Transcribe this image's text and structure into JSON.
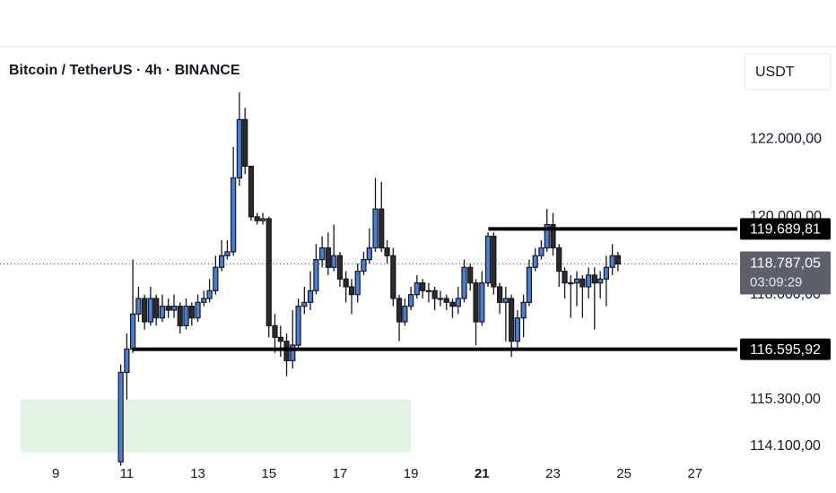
{
  "chart_data": {
    "type": "candlestick",
    "title": "Bitcoin / TetherUS · 4h · BINANCE",
    "currency_button": "USDT",
    "x": [
      10.83,
      11,
      11.17,
      11.33,
      11.5,
      11.67,
      11.83,
      12,
      12.17,
      12.33,
      12.5,
      12.67,
      12.83,
      13,
      13.17,
      13.33,
      13.5,
      13.67,
      13.83,
      14,
      14.17,
      14.33,
      14.5,
      14.67,
      14.83,
      15,
      15.17,
      15.33,
      15.5,
      15.67,
      15.83,
      16,
      16.17,
      16.33,
      16.5,
      16.67,
      16.83,
      17,
      17.17,
      17.33,
      17.5,
      17.67,
      17.83,
      18,
      18.17,
      18.33,
      18.5,
      18.67,
      18.83,
      19,
      19.17,
      19.33,
      19.5,
      19.67,
      19.83,
      20,
      20.17,
      20.33,
      20.5,
      20.67,
      20.83,
      21,
      21.17,
      21.33,
      21.5,
      21.67,
      21.83,
      22,
      22.17,
      22.33,
      22.5,
      22.67,
      22.83,
      23,
      23.17,
      23.33,
      23.5,
      23.67,
      23.83,
      24,
      24.17,
      24.33,
      24.5,
      24.67,
      24.83
    ],
    "open": [
      113700,
      116000,
      116600,
      117500,
      117900,
      117300,
      117900,
      117400,
      117700,
      117600,
      117700,
      117200,
      117700,
      117400,
      117800,
      117900,
      118100,
      118700,
      119000,
      119100,
      121000,
      122500,
      121300,
      120000,
      119900,
      119950,
      117200,
      116900,
      116800,
      116300,
      116700,
      117700,
      117800,
      118100,
      118900,
      119200,
      118700,
      119000,
      118400,
      118200,
      118000,
      118600,
      118900,
      119200,
      120200,
      119200,
      119000,
      117900,
      117300,
      117700,
      118000,
      118300,
      118100,
      118100,
      117900,
      117900,
      117800,
      117700,
      117900,
      118700,
      118300,
      117300,
      118300,
      119500,
      118200,
      117800,
      117900,
      116800,
      117400,
      117800,
      118700,
      119000,
      119200,
      119800,
      119200,
      118600,
      118300,
      118300,
      118400,
      118200,
      118500,
      118300,
      118400,
      118700,
      119000
    ],
    "high": [
      116200,
      117000,
      118900,
      118200,
      118000,
      118200,
      118000,
      118000,
      117900,
      118000,
      117800,
      117900,
      117800,
      118000,
      118100,
      118400,
      119000,
      119400,
      119400,
      121800,
      123200,
      122800,
      121300,
      120100,
      120100,
      120000,
      117500,
      117200,
      117000,
      117600,
      117900,
      118200,
      118600,
      119300,
      119500,
      119600,
      119800,
      119100,
      118600,
      118400,
      118800,
      119100,
      119700,
      121000,
      120900,
      119400,
      119200,
      118000,
      117900,
      118200,
      118500,
      118400,
      118300,
      118200,
      118100,
      118000,
      117900,
      118200,
      118900,
      118800,
      118400,
      118600,
      119600,
      119600,
      118300,
      118200,
      118000,
      117600,
      118000,
      118900,
      119200,
      119400,
      120200,
      120100,
      119300,
      118700,
      118500,
      118600,
      118500,
      118700,
      118700,
      118600,
      119000,
      119300,
      119100
    ],
    "low": [
      113600,
      115300,
      116500,
      117300,
      117100,
      117200,
      117200,
      117300,
      117400,
      117400,
      117000,
      117100,
      117200,
      117300,
      117700,
      117800,
      118000,
      118600,
      118900,
      119000,
      120800,
      121100,
      119900,
      119800,
      119800,
      116900,
      116500,
      116400,
      115900,
      116100,
      116600,
      117500,
      117600,
      118000,
      118700,
      118500,
      118600,
      118200,
      117800,
      117500,
      117800,
      118500,
      118800,
      119100,
      119100,
      118800,
      117700,
      116800,
      117200,
      117600,
      117900,
      117900,
      117800,
      117600,
      117700,
      117600,
      117400,
      117500,
      117800,
      118100,
      116700,
      117200,
      118200,
      118000,
      117500,
      116800,
      116400,
      116600,
      116900,
      117700,
      118600,
      118900,
      119100,
      119000,
      118200,
      117900,
      117400,
      117700,
      117400,
      117900,
      117100,
      117900,
      117700,
      118500,
      118600
    ],
    "close": [
      116000,
      116600,
      117500,
      117900,
      117300,
      117900,
      117400,
      117700,
      117600,
      117700,
      117200,
      117700,
      117400,
      117800,
      117900,
      118100,
      118700,
      119000,
      119100,
      121000,
      122500,
      121300,
      120000,
      119900,
      119950,
      117200,
      116900,
      116800,
      116300,
      116700,
      117700,
      117800,
      118100,
      118900,
      119200,
      118700,
      119000,
      118400,
      118200,
      118000,
      118600,
      118900,
      119200,
      120200,
      119200,
      119000,
      117900,
      117300,
      117700,
      118000,
      118300,
      118100,
      118100,
      117900,
      117900,
      117800,
      117700,
      117900,
      118700,
      118300,
      117300,
      118300,
      119500,
      118200,
      117800,
      117900,
      116800,
      117400,
      117800,
      118700,
      119000,
      119200,
      119800,
      119200,
      118600,
      118300,
      118300,
      118400,
      118200,
      118500,
      118300,
      118400,
      118700,
      119000,
      118787.05
    ],
    "up_color": "#4a7fd6",
    "down_color": "#2b2b2b",
    "wick_color": "#131722",
    "xlim": [
      7.43,
      28.19
    ],
    "ylim": [
      113820,
      123270
    ],
    "xticks": [
      9,
      11,
      13,
      15,
      17,
      19,
      21,
      23,
      25,
      27
    ],
    "bold_xtick": 21,
    "yticks": [
      {
        "value": 122000,
        "label": "122.000,00"
      },
      {
        "value": 120000,
        "label": "120.000,00"
      },
      {
        "value": 118000,
        "label": "118.000,00"
      },
      {
        "value": 115300,
        "label": "115.300,00"
      },
      {
        "value": 114100,
        "label": "114.100,00"
      }
    ],
    "levels": [
      {
        "value": 119689.81,
        "label": "119.689,81",
        "x_start": 21.18
      },
      {
        "value": 116595.92,
        "label": "116.595,92",
        "x_start": 11.15
      }
    ],
    "level_color": "#000000",
    "zone": {
      "x": [
        8.01,
        19.0
      ],
      "y": [
        113940,
        115300
      ],
      "color": "#e3f3e3"
    },
    "last_price": {
      "value": 118787.05,
      "label": "118.787,05",
      "countdown": "03:09:29"
    }
  }
}
